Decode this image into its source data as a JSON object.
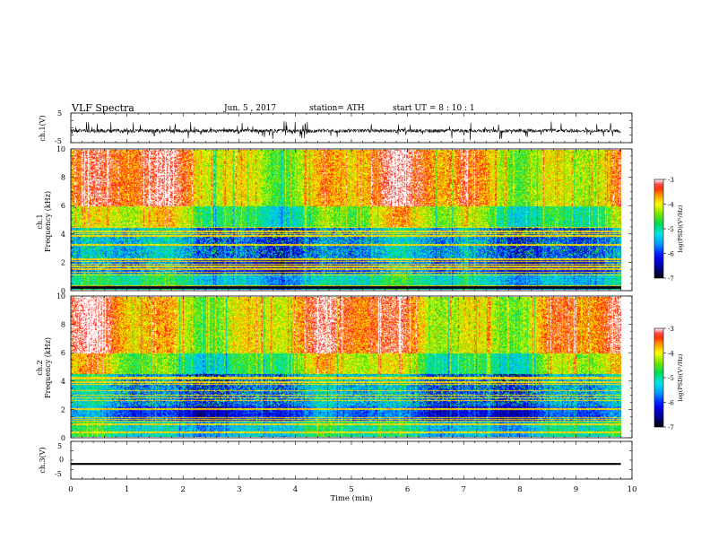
{
  "header": {
    "title": "VLF  Spectra",
    "date": "Jun. 5  , 2017",
    "station": "station= ATH",
    "start": "start  UT  =   8  : 10 : 1"
  },
  "colors": {
    "background": "#ffffff",
    "axis": "#000000",
    "trace": "#000000"
  },
  "chart_data": [
    {
      "type": "line",
      "ylabel": "ch.1(V)",
      "ylim": [
        -5,
        5
      ],
      "yticks": [
        "5",
        "-5"
      ],
      "xlim": [
        0,
        10
      ],
      "note": "time series, mostly near -1 V with spikes",
      "baseline": -1,
      "x_end": 9.8
    },
    {
      "type": "heatmap",
      "ylabel": "Frequency  (kHz)",
      "channel_label": "ch.1",
      "ylim": [
        0,
        10
      ],
      "yticks": [
        "0",
        "2",
        "4",
        "6",
        "8",
        "10"
      ],
      "xlim": [
        0,
        10
      ],
      "x_end": 9.8,
      "colorbar": {
        "label": "log(PSD)(V²/Hz)",
        "ticks": [
          "-3",
          "-4",
          "-5",
          "-6",
          "-7"
        ],
        "range": [
          -7,
          -3
        ]
      }
    },
    {
      "type": "heatmap",
      "ylabel": "Frequency  (kHz)",
      "channel_label": "ch.2",
      "ylim": [
        0,
        10
      ],
      "yticks": [
        "0",
        "2",
        "4",
        "6",
        "8",
        "10"
      ],
      "xlim": [
        0,
        10
      ],
      "x_end": 9.8,
      "colorbar": {
        "label": "log(PSD)(V²/Hz)",
        "ticks": [
          "-3",
          "-4",
          "-5",
          "-6",
          "-7"
        ],
        "range": [
          -7,
          -3
        ]
      }
    },
    {
      "type": "line",
      "ylabel": "ch.3(V)",
      "ylim": [
        -5,
        5
      ],
      "yticks": [
        "5",
        "0",
        "-5"
      ],
      "xlim": [
        0,
        10
      ],
      "baseline": -1,
      "x_end": 9.8
    }
  ],
  "xaxis": {
    "label": "Time  (min)",
    "ticks": [
      "0",
      "1",
      "2",
      "3",
      "4",
      "5",
      "6",
      "7",
      "8",
      "9",
      "10"
    ]
  }
}
